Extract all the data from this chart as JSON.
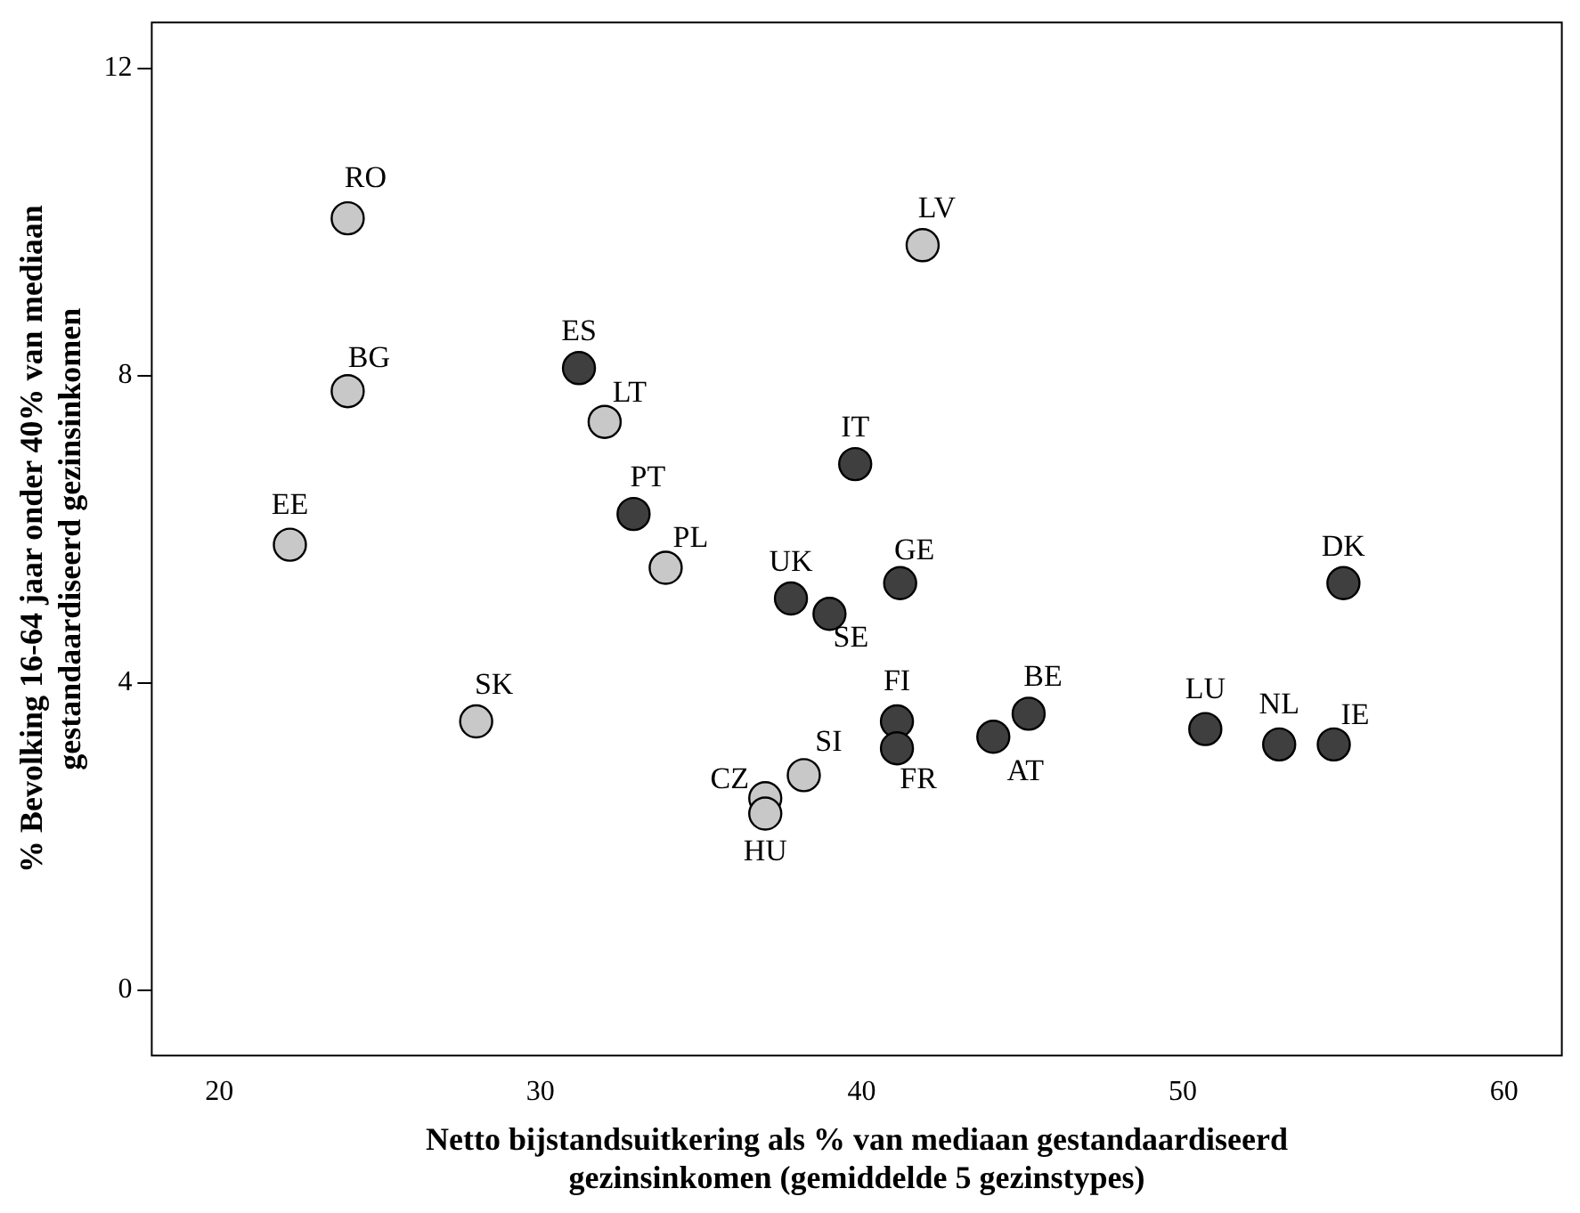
{
  "chart_data": {
    "type": "scatter",
    "xlabel": "Netto bijstandsuitkering als % van mediaan gestandaardiseerd gezinsinkomen (gemiddelde 5 gezinstypes)",
    "ylabel": "% Bevolking 16-64 jaar onder 40% van mediaan gestandaardiseerd gezinsinkomen",
    "xlim": [
      17.9,
      61.8
    ],
    "xticks": [
      20,
      30,
      40,
      50,
      60
    ],
    "ylim": [
      -0.85,
      12.6
    ],
    "yticks": [
      0,
      4,
      8,
      12
    ],
    "grid": false,
    "legend": false,
    "marker": "circle",
    "series": [
      {
        "color": "#3f3f3f",
        "x": [
          31.2,
          32.9,
          39.8,
          37.8,
          41.2,
          39.0,
          41.1,
          41.1,
          44.1,
          45.2,
          50.7,
          53.0,
          54.7,
          55.0
        ],
        "values": [
          8.1,
          6.2,
          6.85,
          5.1,
          5.3,
          4.9,
          3.5,
          3.15,
          3.3,
          3.6,
          3.4,
          3.2,
          3.2,
          5.3
        ]
      },
      {
        "color": "#c8c8c8",
        "x": [
          24.0,
          24.0,
          22.2,
          28.0,
          32.0,
          33.9,
          41.9,
          38.2,
          37.0,
          37.0
        ],
        "values": [
          10.05,
          7.8,
          5.8,
          3.5,
          7.4,
          5.5,
          9.7,
          2.8,
          2.5,
          2.3
        ]
      }
    ],
    "annotations": [
      {
        "text": "ES",
        "x": 31.2,
        "y": 8.1
      },
      {
        "text": "PT",
        "x": 32.9,
        "y": 6.2
      },
      {
        "text": "IT",
        "x": 39.8,
        "y": 6.85
      },
      {
        "text": "UK",
        "x": 37.8,
        "y": 5.1
      },
      {
        "text": "GE",
        "x": 41.2,
        "y": 5.3
      },
      {
        "text": "SE",
        "x": 39.0,
        "y": 4.9
      },
      {
        "text": "FI",
        "x": 41.1,
        "y": 3.5
      },
      {
        "text": "FR",
        "x": 41.1,
        "y": 3.15
      },
      {
        "text": "AT",
        "x": 44.1,
        "y": 3.3
      },
      {
        "text": "BE",
        "x": 45.2,
        "y": 3.6
      },
      {
        "text": "LU",
        "x": 50.7,
        "y": 3.4
      },
      {
        "text": "NL",
        "x": 53.0,
        "y": 3.2
      },
      {
        "text": "IE",
        "x": 54.7,
        "y": 3.2
      },
      {
        "text": "DK",
        "x": 55.0,
        "y": 5.3
      },
      {
        "text": "RO",
        "x": 24.0,
        "y": 10.05
      },
      {
        "text": "BG",
        "x": 24.0,
        "y": 7.8
      },
      {
        "text": "EE",
        "x": 22.2,
        "y": 5.8
      },
      {
        "text": "SK",
        "x": 28.0,
        "y": 3.5
      },
      {
        "text": "LT",
        "x": 32.0,
        "y": 7.4
      },
      {
        "text": "PL",
        "x": 33.9,
        "y": 5.5
      },
      {
        "text": "LV",
        "x": 41.9,
        "y": 9.7
      },
      {
        "text": "SI",
        "x": 38.2,
        "y": 2.8
      },
      {
        "text": "CZ",
        "x": 37.0,
        "y": 2.5
      },
      {
        "text": "HU",
        "x": 37.0,
        "y": 2.3
      }
    ]
  }
}
